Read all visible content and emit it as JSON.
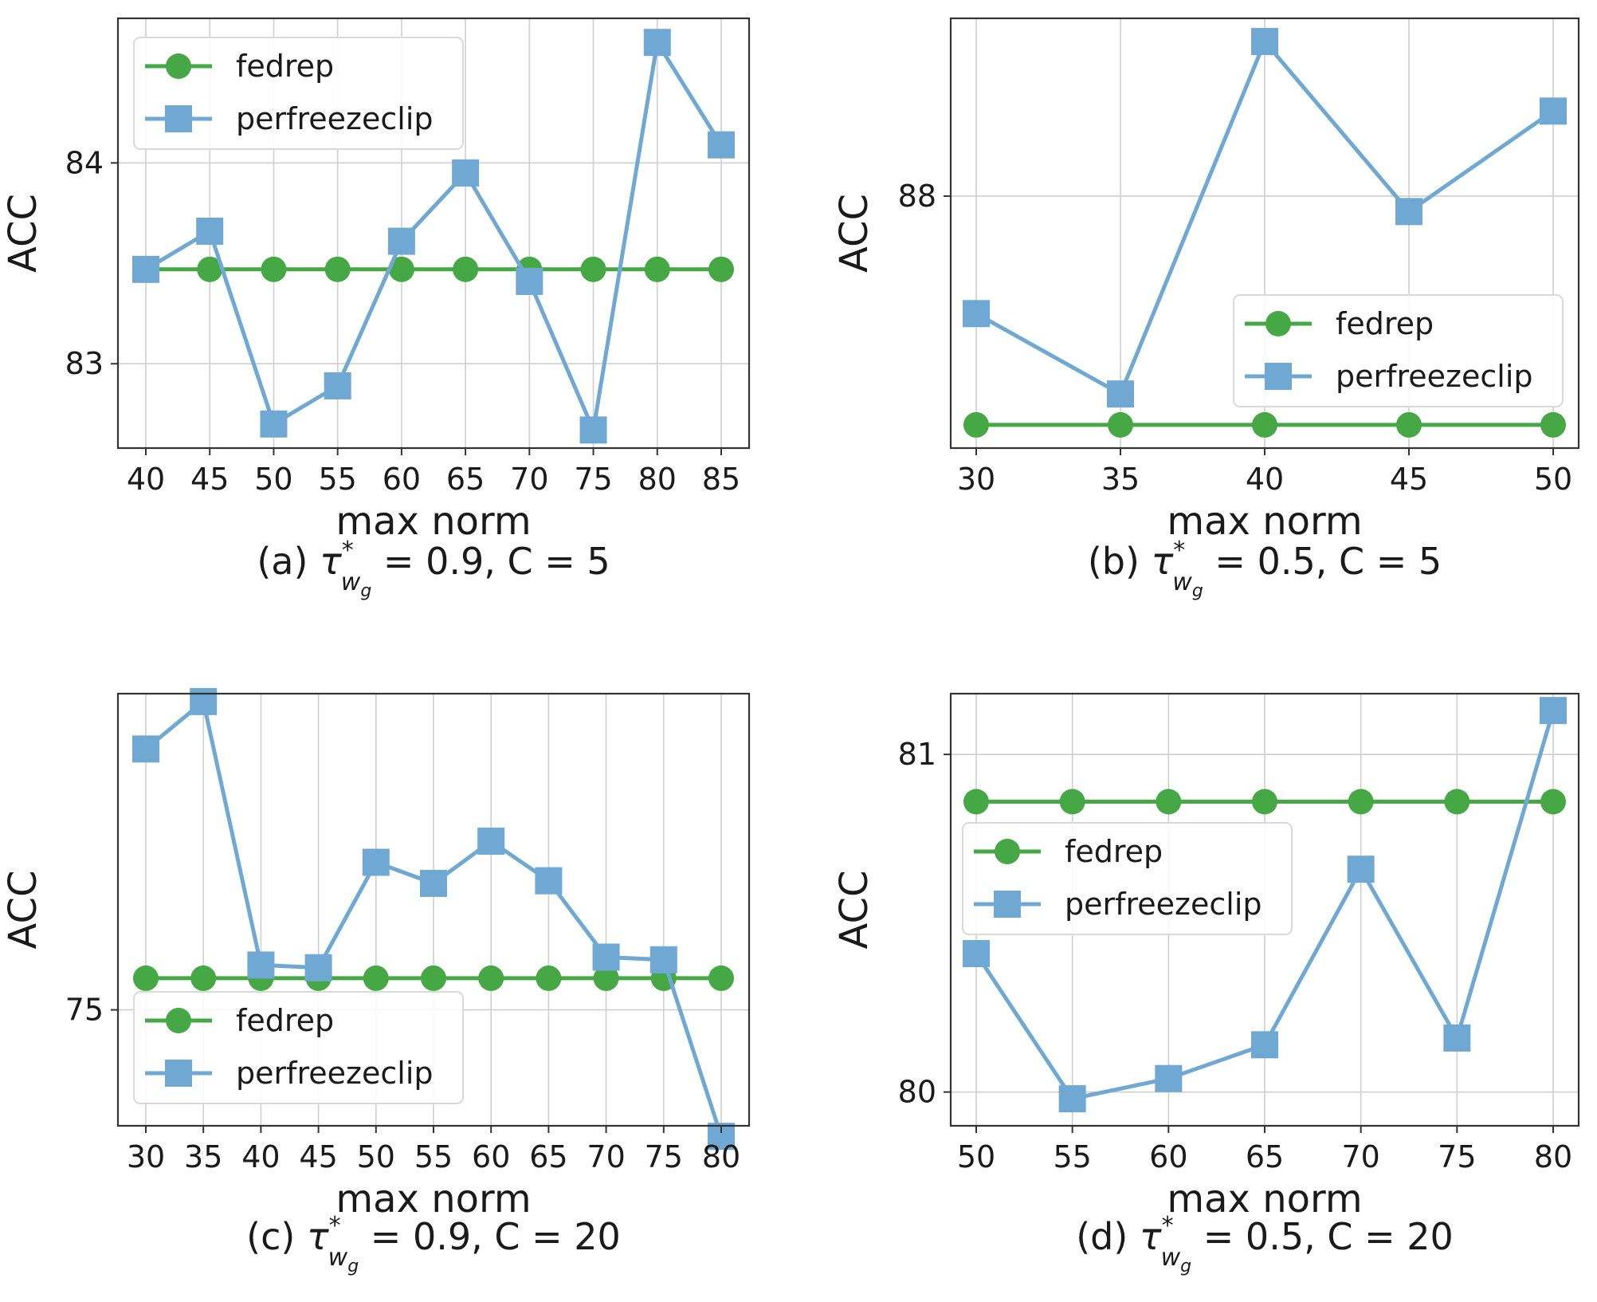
{
  "colors": {
    "fedrep": "#46a845",
    "perfreezeclip": "#6fa8d3",
    "grid": "#cfcfcf",
    "axis": "#333333"
  },
  "chart_data": [
    {
      "type": "line",
      "panel": "a",
      "caption": {
        "prefix": "(a) ",
        "tau": "τ",
        "sup": "*",
        "sub": "w",
        "subsub": "g",
        "rest": " = 0.9, C = 5"
      },
      "xlabel": "max norm",
      "ylabel": "ACC",
      "x": [
        40,
        45,
        50,
        55,
        60,
        65,
        70,
        75,
        80,
        85
      ],
      "xticks": [
        "40",
        "45",
        "50",
        "55",
        "60",
        "65",
        "70",
        "75",
        "80",
        "85"
      ],
      "yticks": [
        83,
        84
      ],
      "ytick_labels": [
        "83",
        "84"
      ],
      "ylim": [
        82.58,
        84.72
      ],
      "legend_position": "upper-left",
      "series": [
        {
          "name": "fedrep",
          "marker": "circle",
          "values": [
            83.47,
            83.47,
            83.47,
            83.47,
            83.47,
            83.47,
            83.47,
            83.47,
            83.47,
            83.47
          ]
        },
        {
          "name": "perfreezeclip",
          "marker": "square",
          "values": [
            83.47,
            83.66,
            82.7,
            82.89,
            83.61,
            83.95,
            83.41,
            82.67,
            84.6,
            84.09
          ]
        }
      ]
    },
    {
      "type": "line",
      "panel": "b",
      "caption": {
        "prefix": "(b) ",
        "tau": "τ",
        "sup": "*",
        "sub": "w",
        "subsub": "g",
        "rest": " = 0.5, C = 5"
      },
      "xlabel": "max norm",
      "ylabel": "ACC",
      "x": [
        30,
        35,
        40,
        45,
        50
      ],
      "xticks": [
        "30",
        "35",
        "40",
        "45",
        "50"
      ],
      "yticks": [
        88
      ],
      "ytick_labels": [
        "88"
      ],
      "ylim": [
        86.37,
        89.15
      ],
      "legend_position": "center-right",
      "series": [
        {
          "name": "fedrep",
          "marker": "circle",
          "values": [
            86.52,
            86.52,
            86.52,
            86.52,
            86.52
          ]
        },
        {
          "name": "perfreezeclip",
          "marker": "square",
          "values": [
            87.24,
            86.72,
            89.0,
            87.9,
            88.55
          ]
        }
      ]
    },
    {
      "type": "line",
      "panel": "c",
      "caption": {
        "prefix": "(c) ",
        "tau": "τ",
        "sup": "*",
        "sub": "w",
        "subsub": "g",
        "rest": " = 0.9, C = 20"
      },
      "xlabel": "max norm",
      "ylabel": "ACC",
      "x": [
        30,
        35,
        40,
        45,
        50,
        55,
        60,
        65,
        70,
        75,
        80
      ],
      "xticks": [
        "30",
        "35",
        "40",
        "45",
        "50",
        "55",
        "60",
        "65",
        "70",
        "75",
        "80"
      ],
      "yticks": [
        75
      ],
      "ytick_labels": [
        "75"
      ],
      "ylim": [
        74.56,
        76.2
      ],
      "legend_position": "lower-left",
      "series": [
        {
          "name": "fedrep",
          "marker": "circle",
          "values": [
            75.12,
            75.12,
            75.12,
            75.12,
            75.12,
            75.12,
            75.12,
            75.12,
            75.12,
            75.12,
            75.12
          ]
        },
        {
          "name": "perfreezeclip",
          "marker": "square",
          "values": [
            75.99,
            76.17,
            75.17,
            75.16,
            75.56,
            75.48,
            75.64,
            75.49,
            75.2,
            75.19,
            74.52
          ]
        }
      ]
    },
    {
      "type": "line",
      "panel": "d",
      "caption": {
        "prefix": "(d) ",
        "tau": "τ",
        "sup": "*",
        "sub": "w",
        "subsub": "g",
        "rest": " = 0.5, C = 20"
      },
      "xlabel": "max norm",
      "ylabel": "ACC",
      "x": [
        50,
        55,
        60,
        65,
        70,
        75,
        80
      ],
      "xticks": [
        "50",
        "55",
        "60",
        "65",
        "70",
        "75",
        "80"
      ],
      "yticks": [
        80,
        81
      ],
      "ytick_labels": [
        "80",
        "81"
      ],
      "ylim": [
        79.9,
        81.18
      ],
      "legend_position": "center-left",
      "series": [
        {
          "name": "fedrep",
          "marker": "circle",
          "values": [
            80.86,
            80.86,
            80.86,
            80.86,
            80.86,
            80.86,
            80.86
          ]
        },
        {
          "name": "perfreezeclip",
          "marker": "square",
          "values": [
            80.41,
            79.98,
            80.04,
            80.14,
            80.66,
            80.16,
            81.13
          ]
        }
      ]
    }
  ]
}
